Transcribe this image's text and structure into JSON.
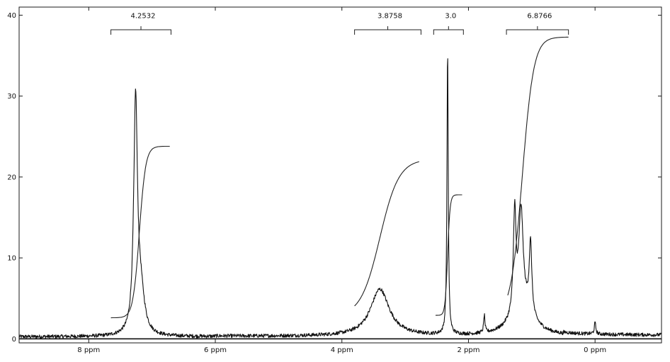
{
  "chart_data": {
    "type": "line",
    "title": "",
    "xlabel": "",
    "ylabel": "",
    "x_reversed": true,
    "xlim": [
      9.1,
      -1.05
    ],
    "ylim": [
      -0.5,
      41
    ],
    "xticks": [
      {
        "value": 8,
        "label": "8 ppm"
      },
      {
        "value": 6,
        "label": "6 ppm"
      },
      {
        "value": 4,
        "label": "4 ppm"
      },
      {
        "value": 2,
        "label": "2 ppm"
      },
      {
        "value": 0,
        "label": "0 ppm"
      }
    ],
    "yticks": [
      {
        "value": 0,
        "label": "0"
      },
      {
        "value": 10,
        "label": "10"
      },
      {
        "value": 20,
        "label": "20"
      },
      {
        "value": 30,
        "label": "30"
      },
      {
        "value": 40,
        "label": "40"
      }
    ],
    "peaks": [
      {
        "center": 7.26,
        "height": 28.5,
        "width": 0.035
      },
      {
        "center": 7.18,
        "height": 5.0,
        "width": 0.07
      },
      {
        "center": 3.4,
        "height": 5.8,
        "width": 0.18
      },
      {
        "center": 2.33,
        "height": 35.5,
        "width": 0.012
      },
      {
        "center": 1.75,
        "height": 2.2,
        "width": 0.012
      },
      {
        "center": 1.27,
        "height": 12.5,
        "width": 0.025
      },
      {
        "center": 1.17,
        "height": 12.0,
        "width": 0.04
      },
      {
        "center": 1.02,
        "height": 8.8,
        "width": 0.025
      },
      {
        "center": 1.15,
        "height": 3.5,
        "width": 0.2
      },
      {
        "center": 0.0,
        "height": 1.4,
        "width": 0.015
      }
    ],
    "integrals": [
      {
        "label": "4.2532",
        "bracket": [
          7.65,
          6.7
        ],
        "bracket_level": 38.2,
        "label_level": 40.0,
        "x_start": 7.65,
        "x_end": 6.72,
        "y_start": 2.6,
        "y_end": 23.8,
        "mid": 7.2,
        "steep": 0.05
      },
      {
        "label": "3.8758",
        "bracket": [
          3.8,
          2.75
        ],
        "bracket_level": 38.2,
        "label_level": 40.0,
        "x_start": 3.8,
        "x_end": 2.78,
        "y_start": 2.8,
        "y_end": 22.2,
        "mid": 3.4,
        "steep": 0.15
      },
      {
        "label": "3.0",
        "bracket": [
          2.55,
          2.08
        ],
        "bracket_level": 38.2,
        "label_level": 40.0,
        "x_start": 2.52,
        "x_end": 2.1,
        "y_start": 2.9,
        "y_end": 17.8,
        "mid": 2.33,
        "steep": 0.02
      },
      {
        "label": "6.8766",
        "bracket": [
          1.4,
          0.42
        ],
        "bracket_level": 38.2,
        "label_level": 40.0,
        "x_start": 1.38,
        "x_end": 0.42,
        "y_start": 2.9,
        "y_end": 37.3,
        "mid": 1.15,
        "steep": 0.09
      }
    ]
  }
}
